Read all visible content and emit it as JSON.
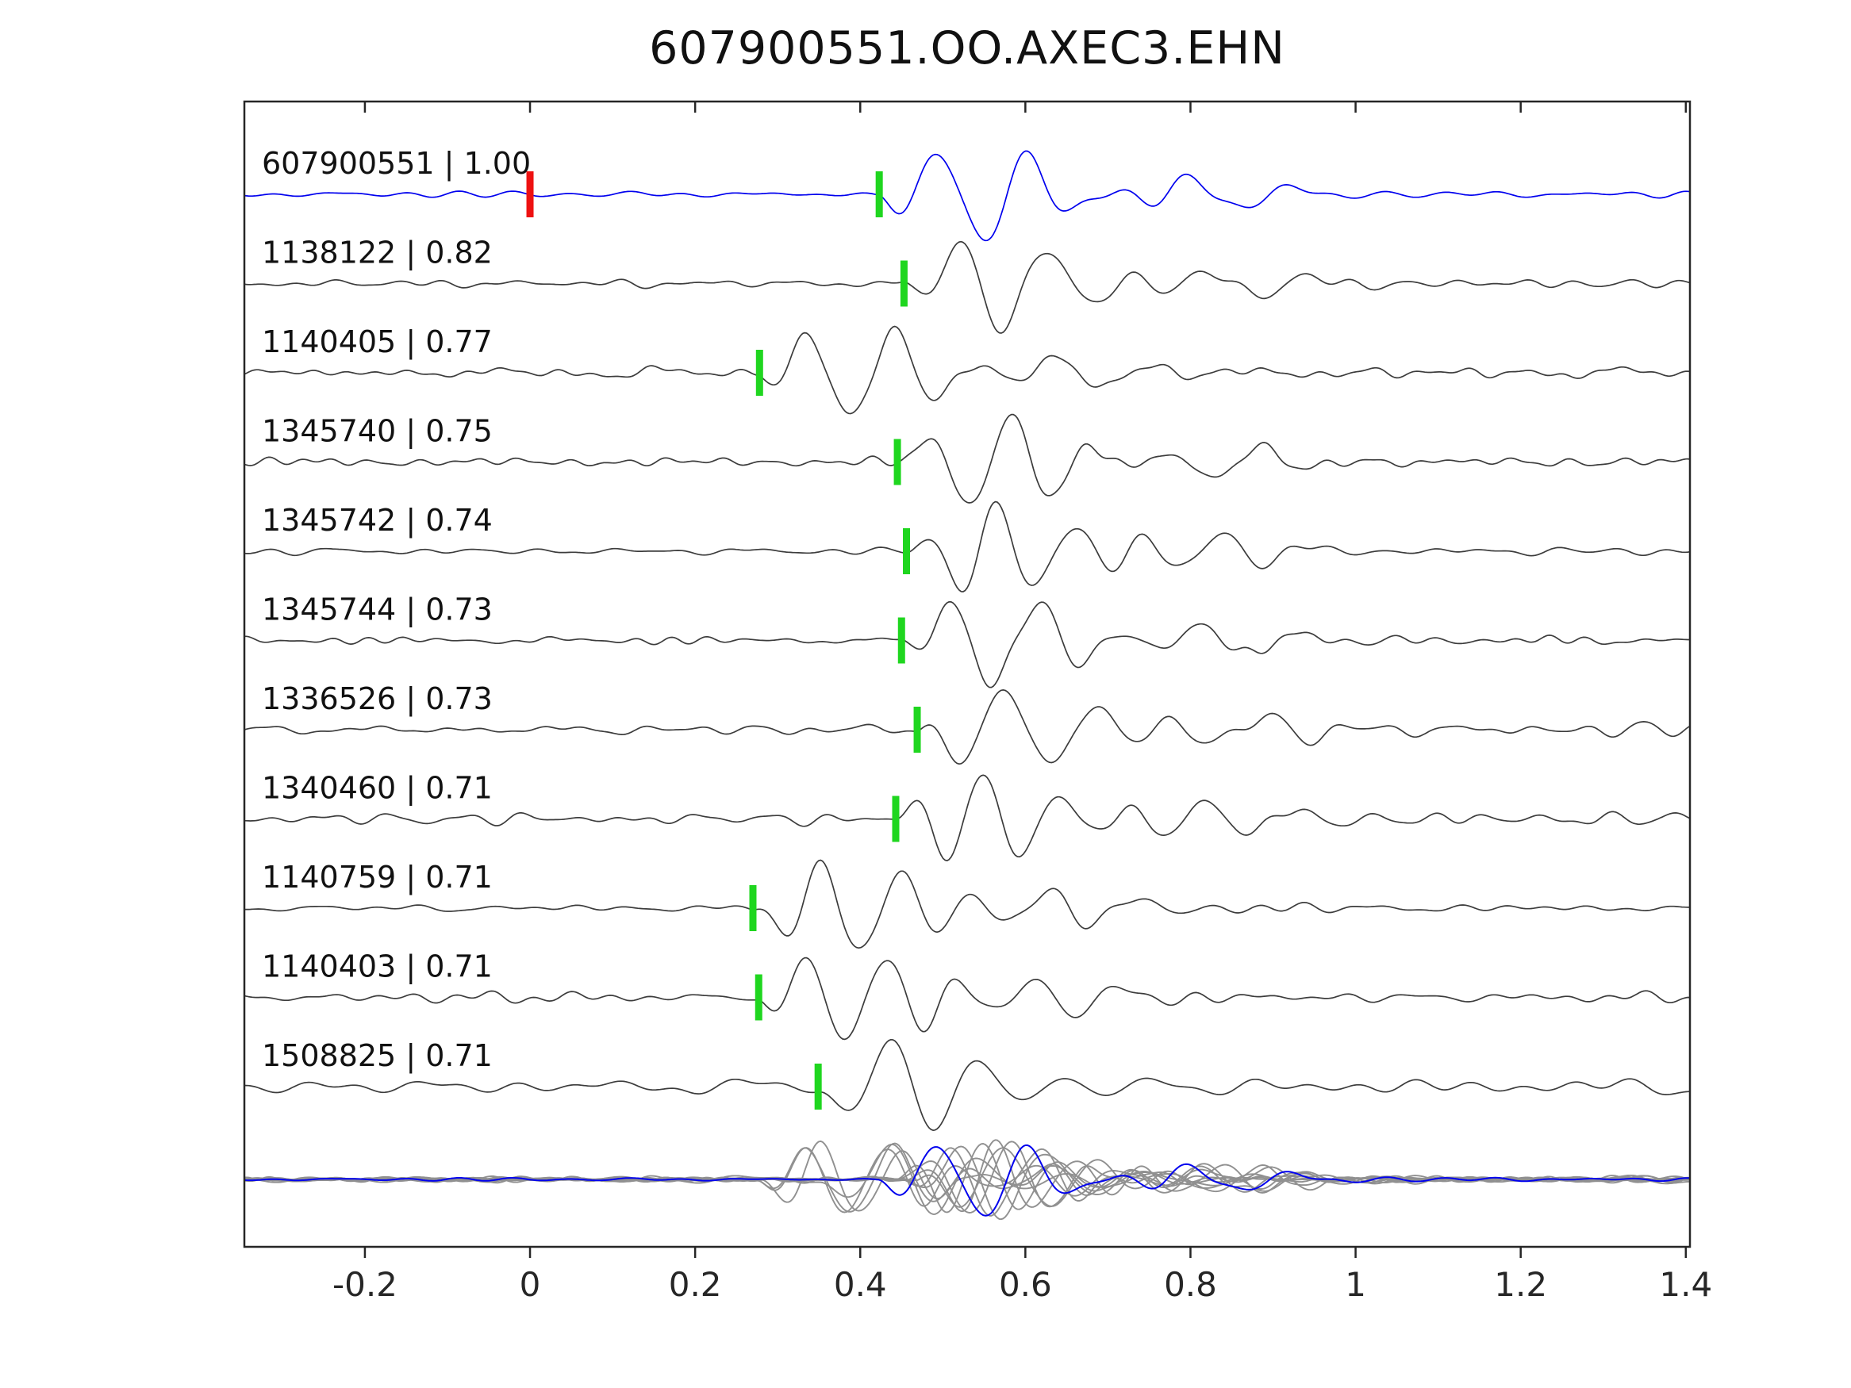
{
  "title": "607900551.OO.AXEC3.EHN",
  "axis": {
    "x_tick_labels": [
      "-0.2",
      "0",
      "0.2",
      "0.4",
      "0.6",
      "0.8",
      "1",
      "1.2",
      "1.4"
    ],
    "x_tick_values": [
      -0.2,
      0,
      0.2,
      0.4,
      0.6,
      0.8,
      1.0,
      1.2,
      1.4
    ],
    "xlim": [
      -0.346,
      1.405
    ]
  },
  "colors": {
    "reference_trace": "#0000ee",
    "trace": "#3c3c3c",
    "overlay_trace": "#909090",
    "pick_marker": "#1fd61f",
    "reference_marker": "#ee1111",
    "axis": "#262626",
    "text": "#111111"
  },
  "chart_data": {
    "type": "line",
    "title": "607900551.OO.AXEC3.EHN",
    "xlabel": "",
    "ylabel": "",
    "xlim": [
      -0.346,
      1.405
    ],
    "x_ticks": [
      -0.2,
      0,
      0.2,
      0.4,
      0.6,
      0.8,
      1.0,
      1.2,
      1.4
    ],
    "grid": false,
    "legend": "none",
    "description": "Template waveform (blue, top) and 10 detected event waveforms (dark gray) with green pick-time markers; red marker at t=0 on template; bottom row overlays all traces (gray) with the template in blue.",
    "traces": [
      {
        "label": "607900551 | 1.00",
        "id": "607900551",
        "correlation": 1.0,
        "pick_time": 0.423,
        "reference": true,
        "red_marker_time": 0.0,
        "amp": 58,
        "noise": 4,
        "seed": 11
      },
      {
        "label": "1138122 | 0.82",
        "id": "1138122",
        "correlation": 0.82,
        "pick_time": 0.453,
        "reference": false,
        "amp": 55,
        "noise": 5,
        "seed": 22
      },
      {
        "label": "1140405 | 0.77",
        "id": "1140405",
        "correlation": 0.77,
        "pick_time": 0.278,
        "reference": false,
        "amp": 56,
        "noise": 6,
        "seed": 33
      },
      {
        "label": "1345740 | 0.75",
        "id": "1345740",
        "correlation": 0.75,
        "pick_time": 0.445,
        "reference": false,
        "amp": 54,
        "noise": 6,
        "seed": 44
      },
      {
        "label": "1345742 | 0.74",
        "id": "1345742",
        "correlation": 0.74,
        "pick_time": 0.456,
        "reference": false,
        "amp": 54,
        "noise": 6,
        "seed": 55
      },
      {
        "label": "1345744 | 0.73",
        "id": "1345744",
        "correlation": 0.73,
        "pick_time": 0.45,
        "reference": false,
        "amp": 54,
        "noise": 6,
        "seed": 66
      },
      {
        "label": "1336526 | 0.73",
        "id": "1336526",
        "correlation": 0.73,
        "pick_time": 0.469,
        "reference": false,
        "amp": 52,
        "noise": 10,
        "seed": 77
      },
      {
        "label": "1340460 | 0.71",
        "id": "1340460",
        "correlation": 0.71,
        "pick_time": 0.443,
        "reference": false,
        "amp": 52,
        "noise": 8,
        "seed": 88
      },
      {
        "label": "1140759 | 0.71",
        "id": "1140759",
        "correlation": 0.71,
        "pick_time": 0.27,
        "reference": false,
        "amp": 55,
        "noise": 5,
        "seed": 99
      },
      {
        "label": "1140403 | 0.71",
        "id": "1140403",
        "correlation": 0.71,
        "pick_time": 0.277,
        "reference": false,
        "amp": 55,
        "noise": 6,
        "seed": 110
      },
      {
        "label": "1508825 | 0.71",
        "id": "1508825",
        "correlation": 0.71,
        "pick_time": 0.349,
        "reference": false,
        "amp": 50,
        "noise": 10,
        "seed": 121
      }
    ],
    "overlay": {
      "shifted": false,
      "amp_scale": 0.8,
      "noise_scale": 0.5
    }
  }
}
